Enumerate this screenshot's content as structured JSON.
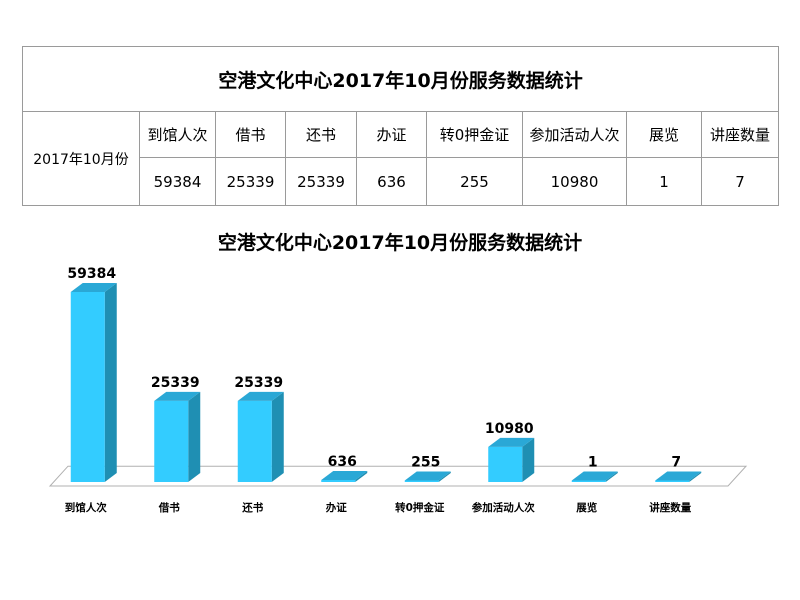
{
  "table": {
    "title": "空港文化中心2017年10月份服务数据统计",
    "row_label": "2017年10月份",
    "headers": [
      "到馆人次",
      "借书",
      "还书",
      "办证",
      "转0押金证",
      "参加活动人次",
      "展览",
      "讲座数量"
    ],
    "values": [
      "59384",
      "25339",
      "25339",
      "636",
      "255",
      "10980",
      "1",
      "7"
    ]
  },
  "chart_data": {
    "type": "bar",
    "title": "空港文化中心2017年10月份服务数据统计",
    "categories": [
      "到馆人次",
      "借书",
      "还书",
      "办证",
      "转0押金证",
      "参加活动人次",
      "展览",
      "讲座数量"
    ],
    "values": [
      59384,
      25339,
      25339,
      636,
      255,
      10980,
      1,
      7
    ],
    "data_labels": [
      "59384",
      "25339",
      "25339",
      "636",
      "255",
      "10980",
      "1",
      "7"
    ],
    "ylim": [
      0,
      59384
    ],
    "grid": false,
    "legend": "none",
    "colors": {
      "bar_front": "#33ccff",
      "bar_side": "#1f8fb3",
      "bar_top": "#2aa8d6",
      "floor": "#ffffff",
      "floor_edge": "#b0b0b0"
    }
  }
}
